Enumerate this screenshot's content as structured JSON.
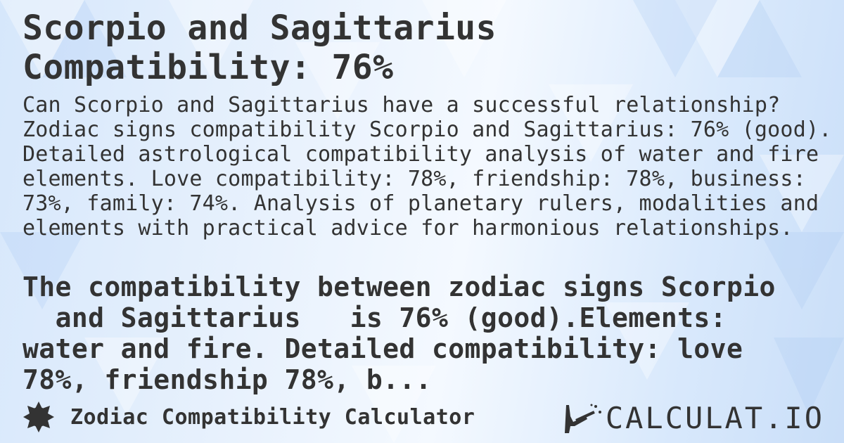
{
  "title": "Scorpio and Sagittarius\nCompatibility: 76%",
  "description": "Can Scorpio and Sagittarius have a successful relationship? Zodiac signs compatibility Scorpio and Sagittarius: 76% (good). Detailed astrological compatibility analysis of water and fire elements. Love compatibility: 78%, friendship: 78%, business: 73%, family: 74%. Analysis of planetary rulers, modalities and elements with practical advice for harmonious relationships.",
  "overlay_text": "The compatibility between zodiac signs Scorpio\n  and Sagittarius   is 76% (good).Elements:\nwater and fire. Detailed compatibility: love\n78%, friendship 78%, b...",
  "footer": {
    "label": "Zodiac Compatibility Calculator",
    "icon": "badge-icon"
  },
  "logo": {
    "text": "CALCULAT.IO",
    "icon": "magic-wand-hand-icon"
  },
  "colors": {
    "text": "#333333",
    "background": "#dceafb"
  }
}
